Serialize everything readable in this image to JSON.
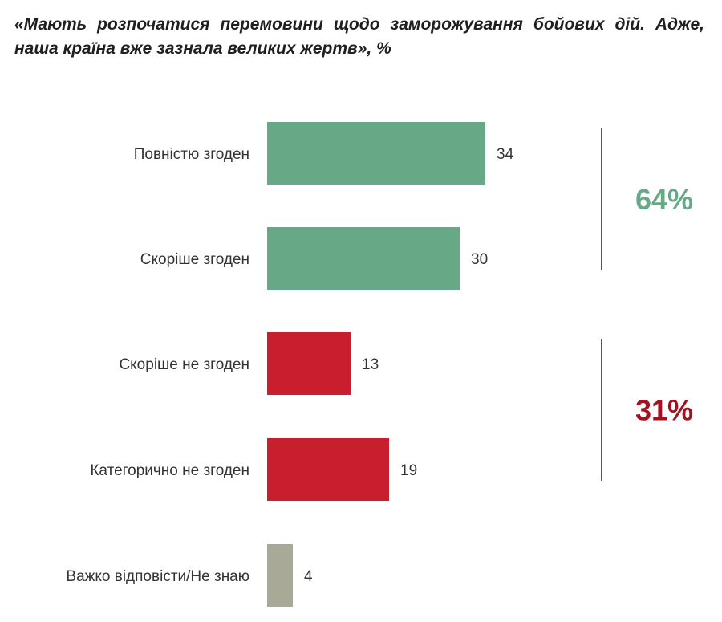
{
  "chart_data": {
    "type": "bar",
    "orientation": "horizontal",
    "title": "«Мають розпочатися перемовини щодо заморожування бойових дій. Адже, наша країна вже зазнала великих жертв», %",
    "categories": [
      "Повністю згоден",
      "Скоріше згоден",
      "Скоріше не згоден",
      "Категорично не згоден",
      "Важко відповісти/Не знаю"
    ],
    "values": [
      34,
      30,
      13,
      19,
      4
    ],
    "bar_colors": [
      "#67a886",
      "#67a886",
      "#c81e2e",
      "#c81e2e",
      "#a8a996"
    ],
    "groups": [
      {
        "label": "64%",
        "color": "#67a886",
        "members": [
          0,
          1
        ]
      },
      {
        "label": "31%",
        "color": "#a3121e",
        "members": [
          2,
          3
        ]
      }
    ],
    "grid": false,
    "legend": "none"
  }
}
